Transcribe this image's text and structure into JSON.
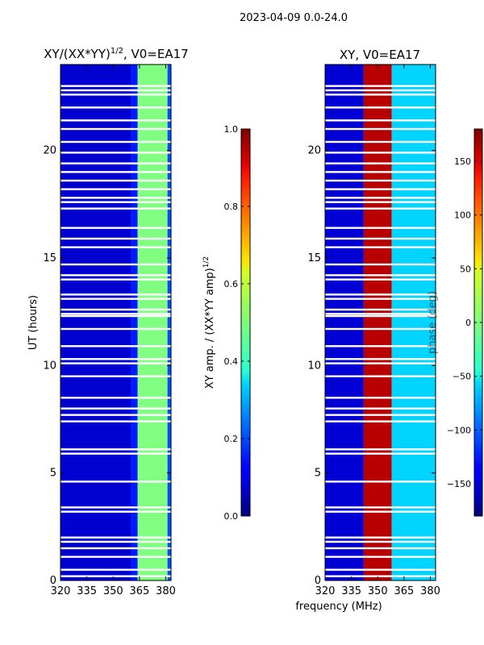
{
  "figure": {
    "suptitle": "2023-04-09 0.0-24.0",
    "xlabel_common": "frequency (MHz)"
  },
  "chart_data": [
    {
      "type": "heatmap",
      "id": "amp",
      "title_main": "XY/(XX*YY)",
      "title_sup": "1/2",
      "title_tail": ", V0=EA17",
      "ylabel": "UT (hours)",
      "xlim": [
        320,
        383
      ],
      "ylim": [
        0,
        24
      ],
      "xticks": [
        320,
        335,
        350,
        365,
        380
      ],
      "yticks": [
        0,
        5,
        10,
        15,
        20
      ],
      "vmin": 0.0,
      "vmax": 1.0,
      "colorbar_label_main": "XY amp. / (XX*YY amp)",
      "colorbar_label_sup": "1/2",
      "colorbar_ticks": [
        "0.0",
        "0.2",
        "0.4",
        "0.6",
        "0.8",
        "1.0"
      ],
      "colorbar_tick_values": [
        0.0,
        0.2,
        0.4,
        0.6,
        0.8,
        1.0
      ],
      "bands": [
        {
          "f0": 320,
          "f1": 360,
          "level": 0.08
        },
        {
          "f0": 360,
          "f1": 364,
          "level": 0.15
        },
        {
          "f0": 364,
          "f1": 381,
          "level": 0.5
        },
        {
          "f0": 381,
          "f1": 383,
          "level": 0.2
        }
      ]
    },
    {
      "type": "heatmap",
      "id": "phase",
      "title_main": "XY, V0=EA17",
      "ylabel": "",
      "xlim": [
        320,
        383
      ],
      "ylim": [
        0,
        24
      ],
      "xticks": [
        320,
        335,
        350,
        365,
        380
      ],
      "yticks": [
        0,
        5,
        10,
        15,
        20
      ],
      "vmin": -180,
      "vmax": 180,
      "colorbar_label_main": "phase (deg)",
      "colorbar_ticks": [
        "−150",
        "−100",
        "−50",
        "0",
        "50",
        "100",
        "150"
      ],
      "colorbar_tick_values": [
        -150,
        -100,
        -50,
        0,
        50,
        100,
        150
      ],
      "bands": [
        {
          "f0": 320,
          "f1": 342,
          "level": -150
        },
        {
          "f0": 342,
          "f1": 358,
          "level": 160
        },
        {
          "f0": 358,
          "f1": 383,
          "level": -60
        }
      ]
    }
  ],
  "flagged_hours": [
    0.2,
    0.5,
    1.1,
    1.5,
    1.8,
    2.0,
    3.2,
    3.4,
    4.6,
    5.9,
    6.1,
    7.4,
    7.7,
    8.0,
    8.5,
    9.5,
    10.1,
    10.3,
    10.9,
    11.7,
    12.3,
    12.4,
    12.6,
    13.1,
    13.3,
    14.0,
    14.2,
    14.7,
    15.5,
    15.9,
    16.4,
    17.3,
    17.6,
    17.8,
    18.2,
    18.6,
    19.0,
    19.4,
    19.9,
    20.4,
    21.0,
    21.4,
    22.0,
    22.6,
    22.8,
    23.0
  ]
}
